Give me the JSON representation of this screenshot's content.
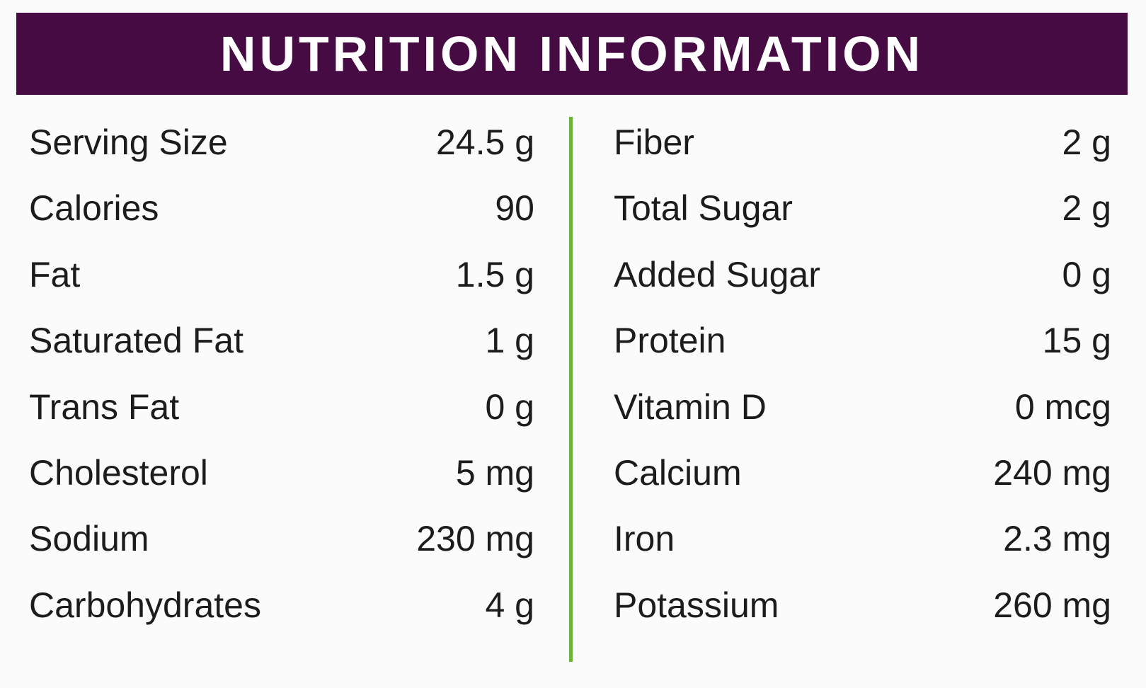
{
  "header": {
    "title": "NUTRITION INFORMATION"
  },
  "table": {
    "left": [
      {
        "label": "Serving Size",
        "value": "24.5 g"
      },
      {
        "label": "Calories",
        "value": "90"
      },
      {
        "label": "Fat",
        "value": "1.5 g"
      },
      {
        "label": "Saturated Fat",
        "value": "1 g"
      },
      {
        "label": "Trans Fat",
        "value": "0 g"
      },
      {
        "label": "Cholesterol",
        "value": "5 mg"
      },
      {
        "label": "Sodium",
        "value": "230 mg"
      },
      {
        "label": "Carbohydrates",
        "value": "4 g"
      }
    ],
    "right": [
      {
        "label": "Fiber",
        "value": "2 g"
      },
      {
        "label": "Total Sugar",
        "value": "2 g"
      },
      {
        "label": "Added Sugar",
        "value": "0 g"
      },
      {
        "label": "Protein",
        "value": "15 g"
      },
      {
        "label": "Vitamin D",
        "value": "0 mcg"
      },
      {
        "label": "Calcium",
        "value": "240 mg"
      },
      {
        "label": "Iron",
        "value": "2.3 mg"
      },
      {
        "label": "Potassium",
        "value": "260 mg"
      }
    ]
  }
}
